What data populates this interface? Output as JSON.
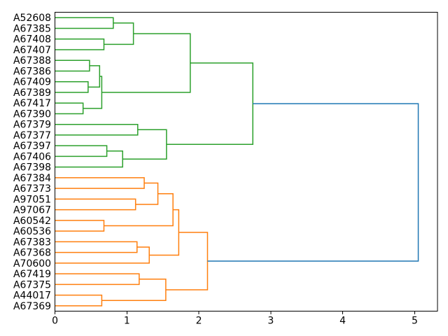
{
  "figure": {
    "background": "#ffffff",
    "colors": {
      "above_threshold": "#1f77b4",
      "cluster_green": "#2ca02c",
      "cluster_orange": "#ff7f0e",
      "spine": "#000000",
      "tick_label": "#000000"
    }
  },
  "chart_data": {
    "type": "dendrogram",
    "title": "",
    "xlabel": "",
    "ylabel": "",
    "orientation": "right",
    "grid": false,
    "x_axis": {
      "tick_labels": [
        "0",
        "1",
        "2",
        "3",
        "4",
        "5"
      ],
      "tick_values": [
        0,
        1,
        2,
        3,
        4,
        5
      ],
      "min": 0,
      "max": 5.32
    },
    "leaves": [
      "A52608",
      "A67385",
      "A67408",
      "A67407",
      "A67388",
      "A67386",
      "A67409",
      "A67389",
      "A67417",
      "A67390",
      "A67379",
      "A67377",
      "A67397",
      "A67406",
      "A67398",
      "A67384",
      "A67373",
      "A97051",
      "A97067",
      "A60542",
      "A60536",
      "A67383",
      "A67368",
      "A70600",
      "A67419",
      "A67375",
      "A44017",
      "A67369"
    ],
    "links": [
      {
        "id": "g1",
        "children": [
          "A52608",
          "A67385"
        ],
        "distance": 0.81,
        "color": "cluster_green"
      },
      {
        "id": "g2",
        "children": [
          "A67408",
          "A67407"
        ],
        "distance": 0.68,
        "color": "cluster_green"
      },
      {
        "id": "g3",
        "children": [
          "g1",
          "g2"
        ],
        "distance": 1.09,
        "color": "cluster_green"
      },
      {
        "id": "g4",
        "children": [
          "A67388",
          "A67386"
        ],
        "distance": 0.48,
        "color": "cluster_green"
      },
      {
        "id": "g5",
        "children": [
          "A67409",
          "A67389"
        ],
        "distance": 0.46,
        "color": "cluster_green"
      },
      {
        "id": "g6",
        "children": [
          "g4",
          "g5"
        ],
        "distance": 0.62,
        "color": "cluster_green"
      },
      {
        "id": "g7",
        "children": [
          "A67417",
          "A67390"
        ],
        "distance": 0.39,
        "color": "cluster_green"
      },
      {
        "id": "g8",
        "children": [
          "g6",
          "g7"
        ],
        "distance": 0.65,
        "color": "cluster_green"
      },
      {
        "id": "g9",
        "children": [
          "g3",
          "g8"
        ],
        "distance": 1.88,
        "color": "cluster_green"
      },
      {
        "id": "g10",
        "children": [
          "A67379",
          "A67377"
        ],
        "distance": 1.15,
        "color": "cluster_green"
      },
      {
        "id": "g11",
        "children": [
          "A67397",
          "A67406"
        ],
        "distance": 0.72,
        "color": "cluster_green"
      },
      {
        "id": "g12",
        "children": [
          "g11",
          "A67398"
        ],
        "distance": 0.94,
        "color": "cluster_green"
      },
      {
        "id": "g13",
        "children": [
          "g10",
          "g12"
        ],
        "distance": 1.55,
        "color": "cluster_green"
      },
      {
        "id": "g14",
        "children": [
          "g9",
          "g13"
        ],
        "distance": 2.75,
        "color": "cluster_green"
      },
      {
        "id": "o1",
        "children": [
          "A67384",
          "A67373"
        ],
        "distance": 1.24,
        "color": "cluster_orange"
      },
      {
        "id": "o2",
        "children": [
          "A97051",
          "A97067"
        ],
        "distance": 1.12,
        "color": "cluster_orange"
      },
      {
        "id": "o3",
        "children": [
          "o1",
          "o2"
        ],
        "distance": 1.43,
        "color": "cluster_orange"
      },
      {
        "id": "o4",
        "children": [
          "A60542",
          "A60536"
        ],
        "distance": 0.68,
        "color": "cluster_orange"
      },
      {
        "id": "o5",
        "children": [
          "o3",
          "o4"
        ],
        "distance": 1.64,
        "color": "cluster_orange"
      },
      {
        "id": "o6",
        "children": [
          "A67383",
          "A67368"
        ],
        "distance": 1.14,
        "color": "cluster_orange"
      },
      {
        "id": "o7",
        "children": [
          "o6",
          "A70600"
        ],
        "distance": 1.31,
        "color": "cluster_orange"
      },
      {
        "id": "o8",
        "children": [
          "o5",
          "o7"
        ],
        "distance": 1.72,
        "color": "cluster_orange"
      },
      {
        "id": "o9",
        "children": [
          "A67419",
          "A67375"
        ],
        "distance": 1.17,
        "color": "cluster_orange"
      },
      {
        "id": "o10",
        "children": [
          "A44017",
          "A67369"
        ],
        "distance": 0.65,
        "color": "cluster_orange"
      },
      {
        "id": "o11",
        "children": [
          "o9",
          "o10"
        ],
        "distance": 1.54,
        "color": "cluster_orange"
      },
      {
        "id": "o12",
        "children": [
          "o8",
          "o11"
        ],
        "distance": 2.12,
        "color": "cluster_orange"
      },
      {
        "id": "root",
        "children": [
          "g14",
          "o12"
        ],
        "distance": 5.05,
        "color": "above_threshold"
      }
    ]
  }
}
